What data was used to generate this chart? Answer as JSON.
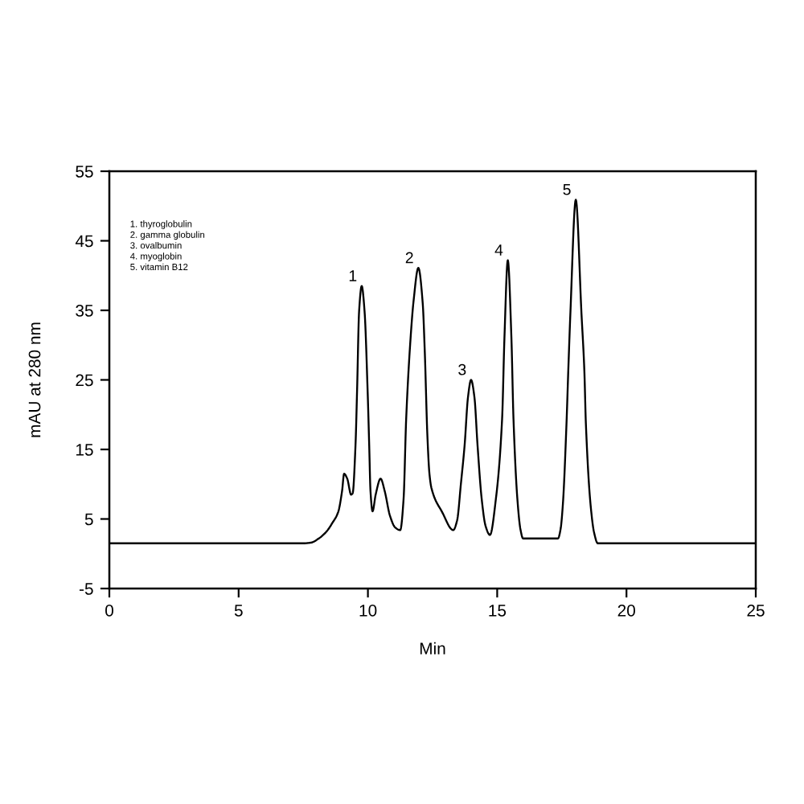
{
  "chart_data": {
    "type": "line",
    "xlabel": "Min",
    "ylabel": "mAU at 280 nm",
    "xlim": [
      0,
      25
    ],
    "ylim": [
      -5,
      55
    ],
    "xticks": [
      0,
      5,
      10,
      15,
      20,
      25
    ],
    "yticks": [
      -5,
      5,
      15,
      25,
      35,
      45,
      55
    ],
    "grid": false,
    "x": [
      0,
      7.5,
      7.8,
      8.1,
      8.4,
      8.62,
      8.85,
      9.0,
      9.08,
      9.2,
      9.35,
      9.41,
      9.52,
      9.58,
      9.66,
      9.76,
      9.87,
      9.99,
      10.05,
      10.1,
      10.18,
      10.3,
      10.49,
      10.65,
      10.85,
      11.05,
      11.25,
      11.38,
      11.48,
      11.65,
      11.77,
      11.95,
      12.12,
      12.2,
      12.3,
      12.38,
      12.46,
      12.87,
      13.3,
      13.45,
      13.6,
      13.74,
      13.87,
      13.99,
      14.12,
      14.24,
      14.4,
      14.55,
      14.72,
      14.95,
      15.19,
      15.28,
      15.41,
      15.55,
      15.63,
      15.78,
      15.9,
      16.0,
      17.35,
      17.45,
      17.54,
      17.68,
      17.75,
      17.83,
      18.04,
      18.26,
      18.37,
      18.43,
      18.61,
      18.75,
      18.89,
      25
    ],
    "series": [
      {
        "color": "#000000",
        "values": [
          1.5,
          1.5,
          1.6,
          2.2,
          3.2,
          4.4,
          6.0,
          9.0,
          11.5,
          10.8,
          8.5,
          8.7,
          15.6,
          23.3,
          34.9,
          38.5,
          34.9,
          23.3,
          15.6,
          9,
          6.1,
          8.5,
          10.8,
          9.0,
          5.5,
          3.8,
          3.4,
          7.9,
          19.4,
          31.0,
          36.5,
          41.1,
          36,
          29,
          17,
          11.5,
          9.4,
          6.0,
          3.4,
          4.8,
          10.2,
          15.6,
          22.5,
          25.0,
          22.5,
          15.6,
          7.9,
          4.0,
          2.7,
          7.9,
          19.4,
          31,
          42.2,
          31,
          19.4,
          7.9,
          3.5,
          2.2,
          2.2,
          3.5,
          7.1,
          18.7,
          26.4,
          34.5,
          50.9,
          34.5,
          26.4,
          18.7,
          7.1,
          3,
          1.5,
          1.5
        ]
      }
    ],
    "annotations": [
      "1. thyroglobulin",
      "2. gamma globulin",
      "3. ovalbumin",
      "4. myoglobin",
      "5. vitamin B12",
      {
        "text": "1",
        "x": 9.76,
        "y": 38.5
      },
      {
        "text": "2",
        "x": 11.95,
        "y": 41.1
      },
      {
        "text": "3",
        "x": 13.99,
        "y": 25.0
      },
      {
        "text": "4",
        "x": 15.41,
        "y": 42.2
      },
      {
        "text": "5",
        "x": 18.04,
        "y": 50.9
      }
    ]
  }
}
